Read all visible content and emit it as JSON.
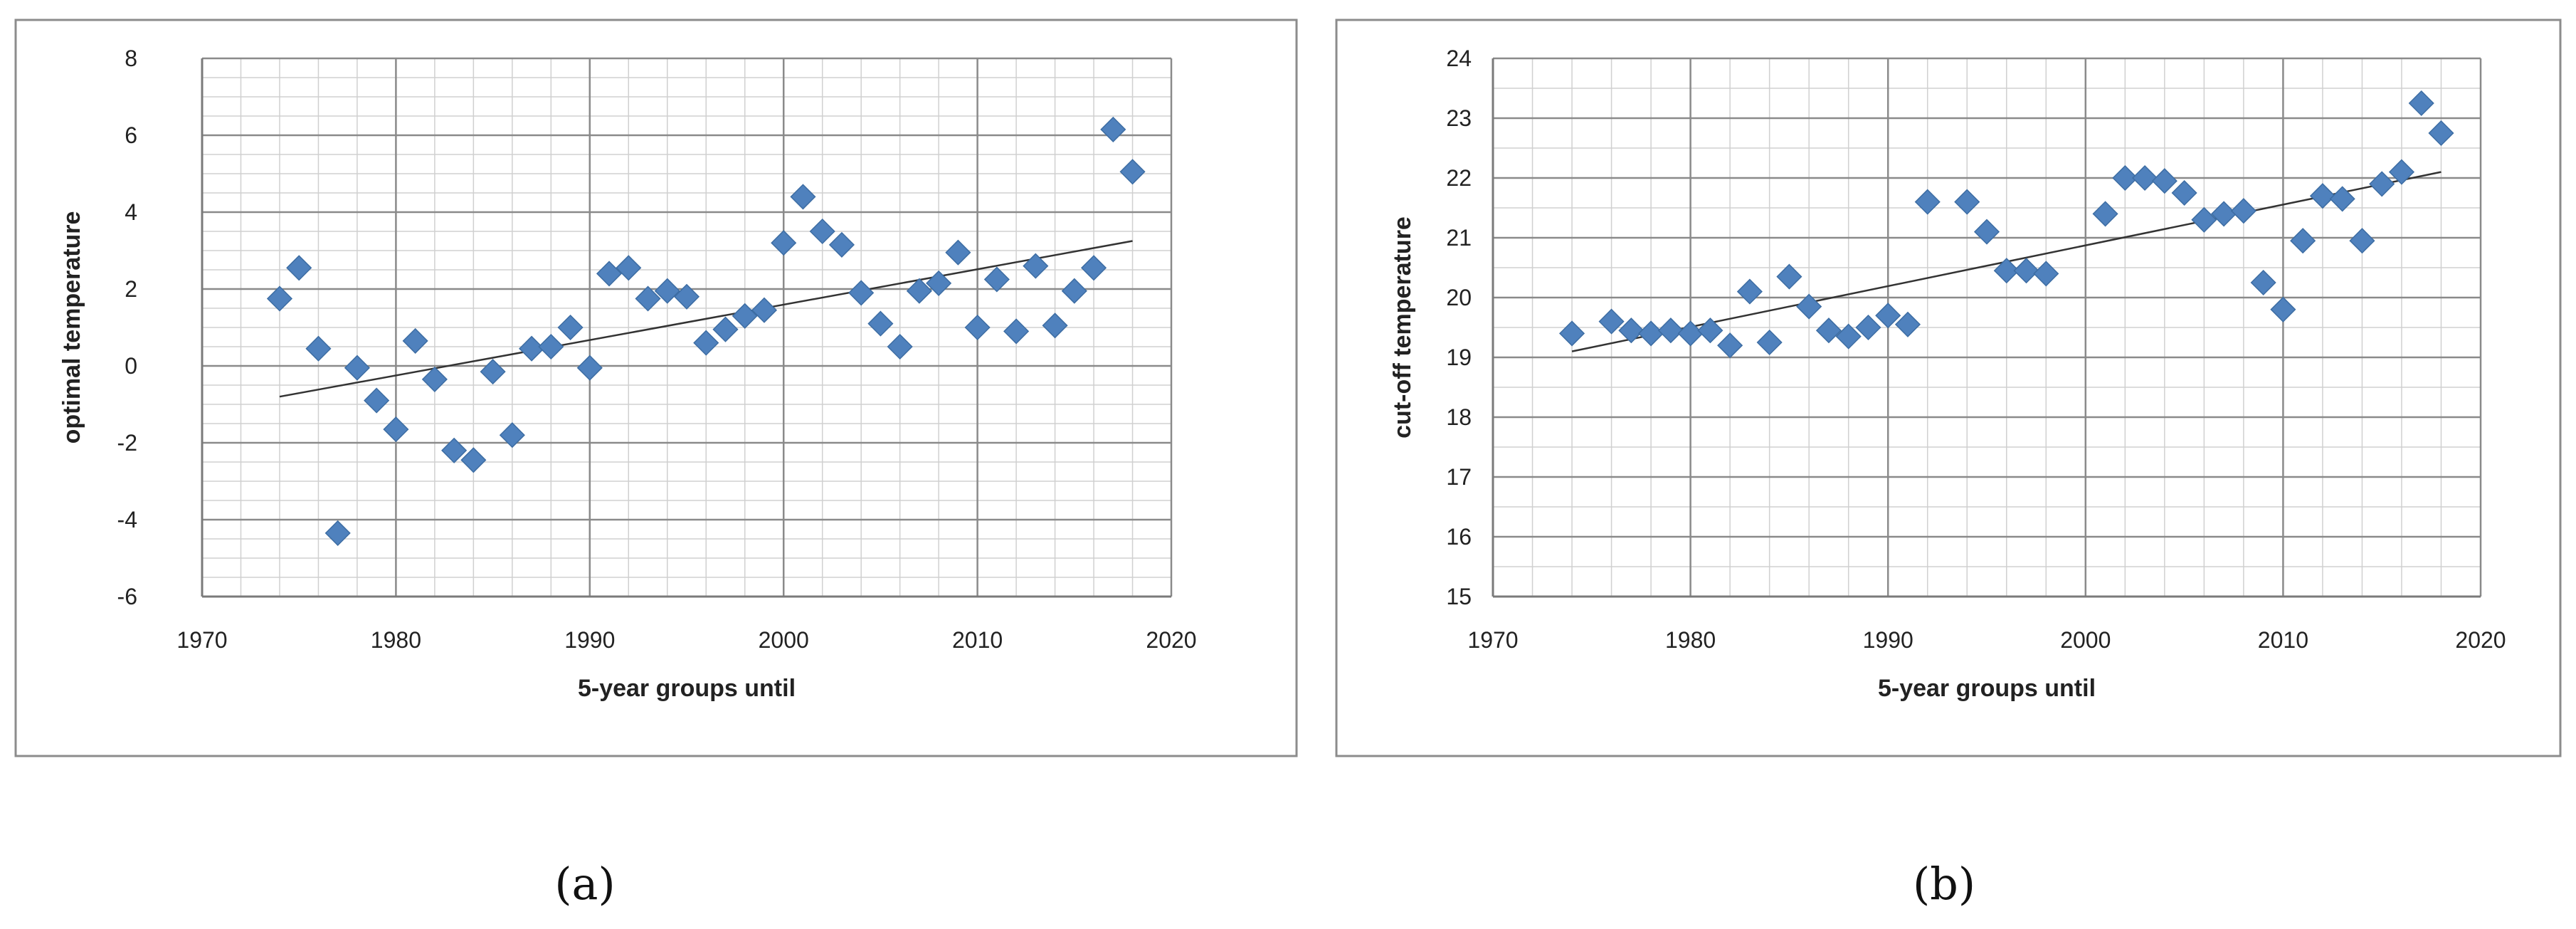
{
  "chart_data": [
    {
      "type": "scatter",
      "panel_label": "(a)",
      "xlabel": "5-year groups until",
      "ylabel": "optimal temperature",
      "xlim": [
        1970,
        2020
      ],
      "ylim": [
        -6,
        8
      ],
      "x_ticks": [
        1970,
        1980,
        1990,
        2000,
        2010,
        2020
      ],
      "y_ticks": [
        -6,
        -4,
        -2,
        0,
        2,
        4,
        6,
        8
      ],
      "minor_x_step": 2,
      "minor_y_step": 0.5,
      "grid": true,
      "marker": "diamond",
      "marker_color": "#4f81bd",
      "trendline": {
        "x": [
          1974,
          2018
        ],
        "y": [
          -0.8,
          3.25
        ]
      },
      "x": [
        1974,
        1975,
        1976,
        1977,
        1978,
        1979,
        1980,
        1981,
        1982,
        1983,
        1984,
        1985,
        1986,
        1987,
        1988,
        1989,
        1990,
        1991,
        1992,
        1993,
        1994,
        1995,
        1996,
        1997,
        1998,
        1999,
        2000,
        2001,
        2002,
        2003,
        2004,
        2005,
        2006,
        2007,
        2008,
        2009,
        2010,
        2011,
        2012,
        2013,
        2014,
        2015,
        2016,
        2017,
        2018
      ],
      "y": [
        1.75,
        2.55,
        0.45,
        -4.35,
        -0.05,
        -0.9,
        -1.65,
        0.65,
        -0.35,
        -2.2,
        -2.45,
        -0.15,
        -1.8,
        0.45,
        0.5,
        1.0,
        -0.05,
        2.4,
        2.55,
        1.75,
        1.95,
        1.8,
        0.6,
        0.95,
        1.3,
        1.45,
        3.2,
        4.4,
        3.5,
        3.15,
        1.9,
        1.1,
        0.5,
        1.95,
        2.15,
        2.95,
        1.0,
        2.25,
        0.9,
        2.6,
        1.05,
        1.95,
        2.55,
        6.15,
        5.05
      ]
    },
    {
      "type": "scatter",
      "panel_label": "(b)",
      "xlabel": "5-year groups until",
      "ylabel": "cut-off temperature",
      "xlim": [
        1970,
        2020
      ],
      "ylim": [
        15,
        24
      ],
      "x_ticks": [
        1970,
        1980,
        1990,
        2000,
        2010,
        2020
      ],
      "y_ticks": [
        15,
        16,
        17,
        18,
        19,
        20,
        21,
        22,
        23,
        24
      ],
      "minor_x_step": 2,
      "minor_y_step": 0.5,
      "grid": true,
      "marker": "diamond",
      "marker_color": "#4f81bd",
      "trendline": {
        "x": [
          1974,
          2018
        ],
        "y": [
          19.1,
          22.1
        ]
      },
      "x": [
        1974,
        1976,
        1977,
        1978,
        1979,
        1980,
        1981,
        1982,
        1983,
        1984,
        1985,
        1986,
        1987,
        1988,
        1989,
        1990,
        1991,
        1992,
        1994,
        1995,
        1996,
        1997,
        1998,
        2001,
        2002,
        2003,
        2004,
        2005,
        2006,
        2007,
        2008,
        2009,
        2010,
        2011,
        2012,
        2013,
        2014,
        2015,
        2016,
        2017,
        2018
      ],
      "y": [
        19.4,
        19.6,
        19.45,
        19.4,
        19.45,
        19.4,
        19.45,
        19.2,
        20.1,
        19.25,
        20.35,
        19.85,
        19.45,
        19.35,
        19.5,
        19.7,
        19.55,
        21.6,
        21.6,
        21.1,
        20.45,
        20.45,
        20.4,
        21.4,
        22.0,
        22.0,
        21.95,
        21.75,
        21.3,
        21.4,
        21.45,
        20.25,
        19.8,
        20.95,
        21.7,
        21.65,
        20.95,
        21.9,
        22.1,
        23.25,
        22.75
      ]
    }
  ]
}
